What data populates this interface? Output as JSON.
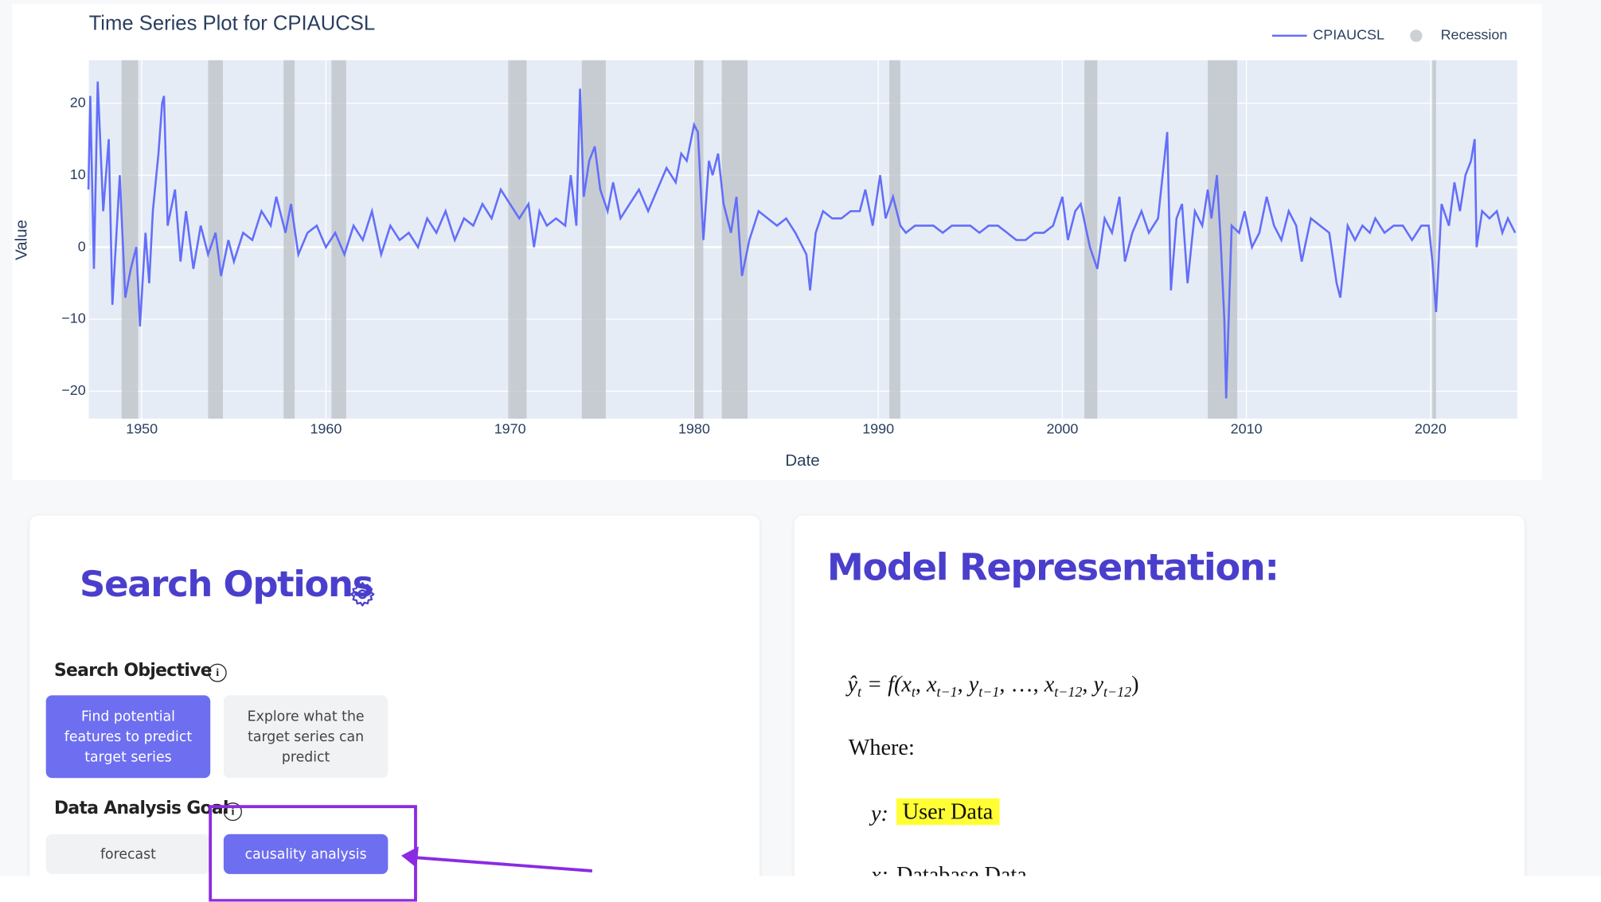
{
  "chart_data": {
    "type": "line",
    "title": "Time Series Plot for CPIAUCSL",
    "x_label": "Date",
    "y_label": "Value",
    "xlim": [
      1947.12,
      2024.71
    ],
    "xticks": [
      1950,
      1960,
      1970,
      1980,
      1990,
      2000,
      2010,
      2020
    ],
    "ylim": [
      -23.8,
      25.96
    ],
    "yticks": [
      20,
      10,
      0,
      {
        "value": -10,
        "label": "−10"
      },
      {
        "value": -20,
        "label": "−20"
      }
    ],
    "grid": true,
    "legend": "top-right",
    "x": [
      1947.1,
      1947.2,
      1947.4,
      1947.6,
      1947.9,
      1948.2,
      1948.4,
      1948.8,
      1949.1,
      1949.4,
      1949.7,
      1949.9,
      1950.2,
      1950.4,
      1950.6,
      1950.9,
      1951.1,
      1951.2,
      1951.4,
      1951.8,
      1952.1,
      1952.4,
      1952.8,
      1953.2,
      1953.6,
      1954.0,
      1954.3,
      1954.7,
      1955.0,
      1955.5,
      1956.0,
      1956.5,
      1957.0,
      1957.3,
      1957.8,
      1958.1,
      1958.5,
      1959.0,
      1959.5,
      1960.0,
      1960.5,
      1961.0,
      1961.5,
      1962.0,
      1962.5,
      1963.0,
      1963.5,
      1964.0,
      1964.5,
      1965.0,
      1965.5,
      1966.0,
      1966.5,
      1967.0,
      1967.5,
      1968.0,
      1968.5,
      1969.0,
      1969.5,
      1970.0,
      1970.5,
      1971.0,
      1971.3,
      1971.6,
      1972.0,
      1972.5,
      1973.0,
      1973.3,
      1973.6,
      1973.8,
      1974.0,
      1974.3,
      1974.6,
      1974.9,
      1975.3,
      1975.6,
      1976.0,
      1976.5,
      1977.0,
      1977.5,
      1978.0,
      1978.5,
      1979.0,
      1979.3,
      1979.6,
      1980.0,
      1980.2,
      1980.5,
      1980.8,
      1981.0,
      1981.3,
      1981.6,
      1982.0,
      1982.3,
      1982.6,
      1983.0,
      1983.5,
      1984.0,
      1984.5,
      1985.0,
      1985.5,
      1986.1,
      1986.3,
      1986.6,
      1987.0,
      1987.5,
      1988.0,
      1988.5,
      1989.0,
      1989.3,
      1989.7,
      1990.1,
      1990.4,
      1990.8,
      1991.2,
      1991.5,
      1992.0,
      1992.5,
      1993.0,
      1993.5,
      1994.0,
      1994.5,
      1995.0,
      1995.5,
      1996.0,
      1996.5,
      1997.0,
      1997.5,
      1998.0,
      1998.5,
      1999.0,
      1999.5,
      2000.0,
      2000.3,
      2000.7,
      2001.0,
      2001.5,
      2001.9,
      2002.3,
      2002.7,
      2003.1,
      2003.4,
      2003.8,
      2004.3,
      2004.7,
      2005.2,
      2005.7,
      2005.9,
      2006.2,
      2006.5,
      2006.8,
      2007.2,
      2007.6,
      2007.9,
      2008.1,
      2008.4,
      2008.6,
      2008.8,
      2008.9,
      2009.2,
      2009.6,
      2009.9,
      2010.3,
      2010.7,
      2011.1,
      2011.5,
      2011.9,
      2012.3,
      2012.7,
      2013.0,
      2013.5,
      2014.0,
      2014.5,
      2014.9,
      2015.1,
      2015.5,
      2015.9,
      2016.3,
      2016.7,
      2017.0,
      2017.5,
      2018.0,
      2018.5,
      2019.0,
      2019.5,
      2019.9,
      2020.1,
      2020.3,
      2020.6,
      2021.0,
      2021.3,
      2021.6,
      2021.9,
      2022.2,
      2022.4,
      2022.5,
      2022.8,
      2023.2,
      2023.6,
      2023.9,
      2024.2,
      2024.6
    ],
    "series": [
      {
        "name": "CPIAUCSL",
        "color": "#636efa",
        "values": [
          8,
          21,
          -3,
          23,
          5,
          15,
          -8,
          10,
          -7,
          -3,
          0,
          -11,
          2,
          -5,
          5,
          13,
          20,
          21,
          3,
          8,
          -2,
          5,
          -3,
          3,
          -1,
          2,
          -4,
          1,
          -2,
          2,
          1,
          5,
          3,
          7,
          2,
          6,
          -1,
          2,
          3,
          0,
          2,
          -1,
          3,
          1,
          5,
          -1,
          3,
          1,
          2,
          0,
          4,
          2,
          5,
          1,
          4,
          3,
          6,
          4,
          8,
          6,
          4,
          6,
          0,
          5,
          3,
          4,
          3,
          10,
          3,
          22,
          7,
          12,
          14,
          8,
          5,
          9,
          4,
          6,
          8,
          5,
          8,
          11,
          9,
          13,
          12,
          17,
          16,
          1,
          12,
          10,
          13,
          6,
          2,
          7,
          -4,
          1,
          5,
          4,
          3,
          4,
          2,
          -1,
          -6,
          2,
          5,
          4,
          4,
          5,
          5,
          8,
          3,
          10,
          4,
          7,
          3,
          2,
          3,
          3,
          3,
          2,
          3,
          3,
          3,
          2,
          3,
          3,
          2,
          1,
          1,
          2,
          2,
          3,
          7,
          1,
          5,
          6,
          0,
          -3,
          4,
          2,
          7,
          -2,
          2,
          5,
          2,
          4,
          16,
          -6,
          4,
          6,
          -5,
          5,
          3,
          8,
          4,
          10,
          1,
          -10,
          -21,
          3,
          2,
          5,
          0,
          2,
          7,
          3,
          1,
          5,
          3,
          -2,
          4,
          3,
          2,
          -5,
          -7,
          3,
          1,
          3,
          2,
          4,
          2,
          3,
          3,
          1,
          3,
          3,
          -2,
          -9,
          6,
          3,
          9,
          5,
          10,
          12,
          15,
          0,
          5,
          4,
          5,
          2,
          4,
          2
        ]
      }
    ],
    "recessions": {
      "name": "Recession",
      "color": "#bcc1c6",
      "ranges": [
        [
          1948.9,
          1949.8
        ],
        [
          1953.6,
          1954.4
        ],
        [
          1957.7,
          1958.3
        ],
        [
          1960.3,
          1961.1
        ],
        [
          1969.9,
          1970.9
        ],
        [
          1973.9,
          1975.2
        ],
        [
          1980.0,
          1980.5
        ],
        [
          1981.5,
          1982.9
        ],
        [
          1990.6,
          1991.2
        ],
        [
          2001.2,
          2001.9
        ],
        [
          2007.9,
          2009.5
        ],
        [
          2020.1,
          2020.3
        ]
      ]
    }
  },
  "search_options": {
    "title": "Search Options",
    "objective_label": "Search Objective",
    "objective_buttons": [
      "Find potential features to predict target series",
      "Explore what the target series can predict"
    ],
    "goal_label": "Data Analysis Goal",
    "goal_buttons": [
      "forecast",
      "causality analysis"
    ]
  },
  "model": {
    "title": "Model Representation:",
    "formula": [
      {
        "text": "ŷ",
        "sub": "t"
      },
      {
        "text": " = f("
      },
      {
        "text": "x",
        "sub": "t"
      },
      {
        "text": ", "
      },
      {
        "text": "x",
        "sub": "t−1"
      },
      {
        "text": ", "
      },
      {
        "text": "y",
        "sub": "t−1"
      },
      {
        "text": ", …, "
      },
      {
        "text": "x",
        "sub": "t−12"
      },
      {
        "text": ", "
      },
      {
        "text": "y",
        "sub": "t−12"
      },
      {
        "text": ")"
      }
    ],
    "where": "Where:",
    "y_key": "y:",
    "y_value": "User Data",
    "x_key": "x:",
    "x_value": "Database Data"
  }
}
